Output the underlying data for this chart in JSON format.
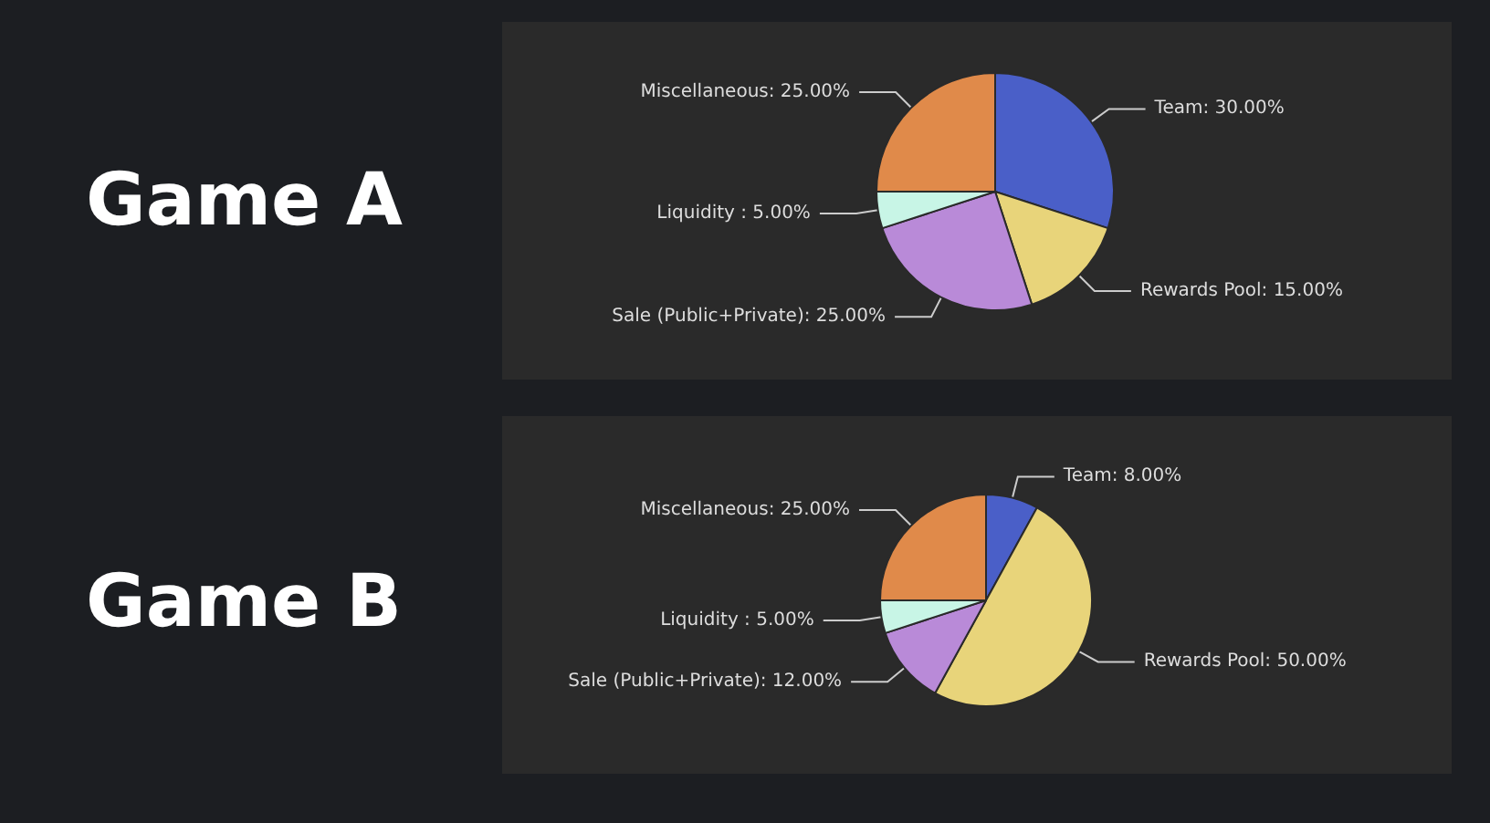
{
  "chart_data": [
    {
      "type": "pie",
      "title": "Game A",
      "categories": [
        "Team",
        "Rewards Pool",
        "Sale (Public+Private)",
        "Liquidity ",
        "Miscellaneous"
      ],
      "values": [
        30,
        15,
        25,
        5,
        25
      ],
      "colors": [
        "#4a5fc8",
        "#e8d47a",
        "#b98ad8",
        "#c8f5e6",
        "#e08a4a"
      ],
      "value_labels": [
        "30.00%",
        "15.00%",
        "25.00%",
        "5.00%",
        "25.00%"
      ]
    },
    {
      "type": "pie",
      "title": "Game B",
      "categories": [
        "Team",
        "Rewards Pool",
        "Sale (Public+Private)",
        "Liquidity ",
        "Miscellaneous"
      ],
      "values": [
        8,
        50,
        12,
        5,
        25
      ],
      "colors": [
        "#4a5fc8",
        "#e8d47a",
        "#b98ad8",
        "#c8f5e6",
        "#e08a4a"
      ],
      "value_labels": [
        "8.00%",
        "50.00%",
        "12.00%",
        "5.00%",
        "25.00%"
      ]
    }
  ]
}
